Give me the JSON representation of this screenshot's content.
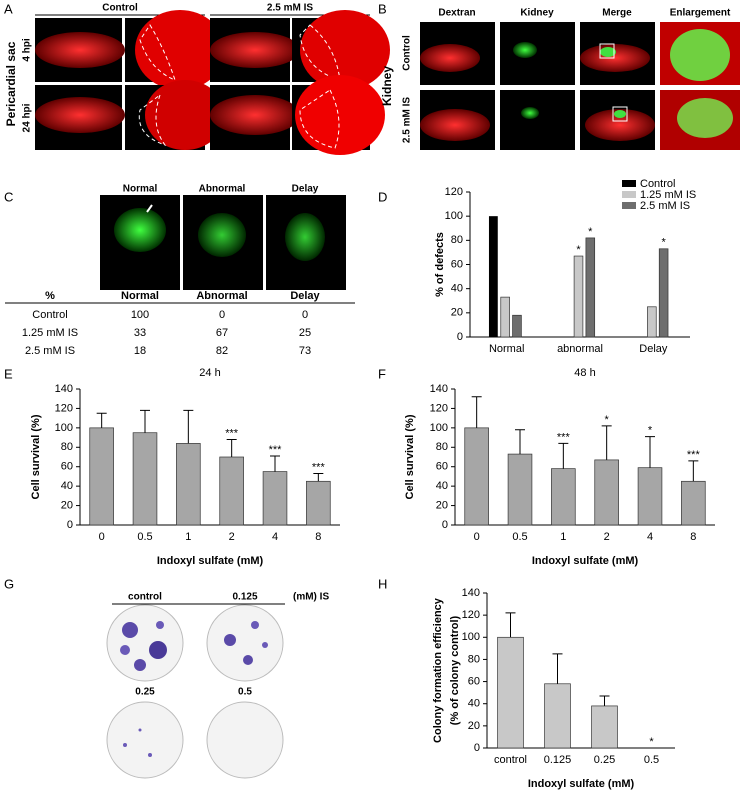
{
  "panel_labels": [
    "A",
    "B",
    "C",
    "D",
    "E",
    "F",
    "G",
    "H"
  ],
  "panel_a": {
    "columns": [
      "Control",
      "2.5 mM IS"
    ],
    "row_group": "Pericardial sac",
    "rows": [
      "4 hpi",
      "24 hpi"
    ]
  },
  "panel_b": {
    "columns": [
      "Dextran",
      "Kidney",
      "Merge",
      "Enlargement"
    ],
    "row_group": "Kidney",
    "rows": [
      "Control",
      "2.5 mM IS"
    ]
  },
  "panel_c": {
    "images": [
      "Normal",
      "Abnormal",
      "Delay"
    ],
    "table": {
      "header": [
        "%",
        "Normal",
        "Abnormal",
        "Delay"
      ],
      "rows": [
        [
          "Control",
          100,
          0,
          0
        ],
        [
          "1.25 mM IS",
          33,
          67,
          25
        ],
        [
          "2.5 mM IS",
          18,
          82,
          73
        ]
      ]
    }
  },
  "panel_g": {
    "labels": [
      "control",
      "0.125",
      "(mM) IS",
      "0.25",
      "0.5"
    ]
  },
  "chart_data": [
    {
      "type": "bar",
      "ylabel": "% of defects",
      "categories": [
        "Normal",
        "abnormal",
        "Delay"
      ],
      "series": [
        {
          "name": "Control",
          "color": "#000000",
          "values": [
            100,
            0,
            0
          ]
        },
        {
          "name": "1.25 mM IS",
          "color": "#c8c8c8",
          "values": [
            33,
            67,
            25
          ],
          "significance": [
            null,
            "*",
            null
          ]
        },
        {
          "name": "2.5 mM IS",
          "color": "#6e6e6e",
          "values": [
            18,
            82,
            73
          ],
          "significance": [
            null,
            "*",
            "*"
          ]
        }
      ],
      "ylim": [
        0,
        120
      ],
      "yticks": [
        0,
        20,
        40,
        60,
        80,
        100,
        120
      ],
      "legend": "top-right"
    },
    {
      "type": "bar",
      "title": "24 h",
      "xlabel": "Indoxyl sulfate (mM)",
      "ylabel": [
        "Cell survival (%)"
      ],
      "categories": [
        "0",
        "0.5",
        "1",
        "2",
        "4",
        "8"
      ],
      "values": [
        100,
        95,
        84,
        70,
        55,
        45
      ],
      "errors": [
        15,
        23,
        34,
        18,
        16,
        8
      ],
      "significance": [
        null,
        null,
        null,
        "***",
        "***",
        "***"
      ],
      "color": "#a6a6a6",
      "ylim": [
        0,
        140
      ],
      "yticks": [
        0,
        20,
        40,
        60,
        80,
        100,
        120,
        140
      ]
    },
    {
      "type": "bar",
      "title": "48 h",
      "xlabel": "Indoxyl sulfate (mM)",
      "ylabel": [
        "Cell survival (%)"
      ],
      "categories": [
        "0",
        "0.5",
        "1",
        "2",
        "4",
        "8"
      ],
      "values": [
        100,
        73,
        58,
        67,
        59,
        45
      ],
      "errors": [
        32,
        25,
        26,
        35,
        32,
        21
      ],
      "significance": [
        null,
        null,
        "***",
        "*",
        "*",
        "***"
      ],
      "color": "#a6a6a6",
      "ylim": [
        0,
        140
      ],
      "yticks": [
        0,
        20,
        40,
        60,
        80,
        100,
        120,
        140
      ]
    },
    {
      "type": "bar",
      "xlabel": "Indoxyl sulfate (mM)",
      "ylabel": [
        "Colony formation efficiency",
        "(% of colony control)"
      ],
      "categories": [
        "control",
        "0.125",
        "0.25",
        "0.5"
      ],
      "values": [
        100,
        58,
        38,
        0
      ],
      "errors": [
        22,
        27,
        9,
        null
      ],
      "significance": [
        null,
        null,
        null,
        "*"
      ],
      "color": "#c8c8c8",
      "ylim": [
        0,
        140
      ],
      "yticks": [
        0,
        20,
        40,
        60,
        80,
        100,
        120,
        140
      ]
    }
  ]
}
